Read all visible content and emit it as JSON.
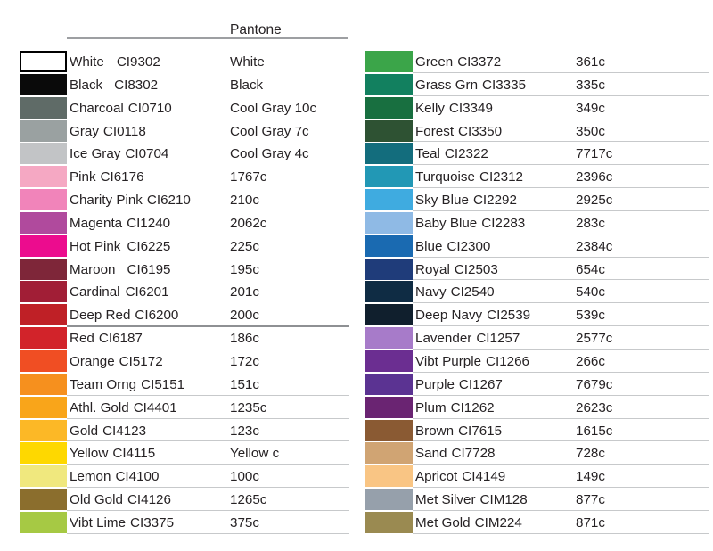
{
  "header": {
    "pantone_label": "Pantone"
  },
  "styles": {
    "background": "#ffffff",
    "text_color": "#262224",
    "header_line_color": "#9d9fa2",
    "row_underline_color": "#c7c9cb",
    "section_divider_color": "#8e9093"
  },
  "columns": {
    "left": {
      "rows": [
        {
          "name": "White",
          "code": "CI9302",
          "pantone": "White",
          "color": "#ffffff",
          "border": true,
          "gap": 14
        },
        {
          "name": "Black",
          "code": "CI8302",
          "pantone": "Black",
          "color": "#0a0a0a",
          "gap": 13
        },
        {
          "name": "Charcoal",
          "code": "CI0710",
          "pantone": "Cool Gray 10c",
          "color": "#5f6b67"
        },
        {
          "name": "Gray",
          "code": "CI0118",
          "pantone": "Cool Gray 7c",
          "color": "#9aa1a1"
        },
        {
          "name": "Ice Gray",
          "code": "CI0704",
          "pantone": "Cool Gray 4c",
          "color": "#c2c4c6"
        },
        {
          "name": "Pink",
          "code": "CI6176",
          "pantone": "1767c",
          "color": "#f5a8c3"
        },
        {
          "name": "Charity Pink",
          "code": "CI6210",
          "pantone": "210c",
          "color": "#f184ba"
        },
        {
          "name": "Magenta",
          "code": "CI1240",
          "pantone": "2062c",
          "color": "#b04a9d"
        },
        {
          "name": "Hot Pink",
          "code": "CI6225",
          "pantone": "225c",
          "color": "#ec0c8e",
          "gap": 7
        },
        {
          "name": "Maroon",
          "code": "CI6195",
          "pantone": "195c",
          "color": "#7e2639",
          "gap": 13
        },
        {
          "name": "Cardinal",
          "code": "CI6201",
          "pantone": "201c",
          "color": "#a11e36",
          "gap": 6
        },
        {
          "name": "Deep Red",
          "code": "CI6200",
          "pantone": "200c",
          "color": "#bf2026",
          "underline": "dark"
        },
        {
          "name": "Red",
          "code": "CI6187",
          "pantone": "186c",
          "color": "#d2232a"
        },
        {
          "name": "Orange",
          "code": "CI5172",
          "pantone": "172c",
          "color": "#f04e23"
        },
        {
          "name": "Team Orng",
          "code": "CI5151",
          "pantone": "151c",
          "color": "#f6901e",
          "underline": "light"
        },
        {
          "name": "Athl. Gold",
          "code": "CI4401",
          "pantone": "1235c",
          "color": "#f9a51a",
          "underline": "light"
        },
        {
          "name": "Gold",
          "code": "CI4123",
          "pantone": "123c",
          "color": "#fcb826",
          "underline": "light"
        },
        {
          "name": "Yellow",
          "code": "CI4115",
          "pantone": "Yellow c",
          "color": "#fed800",
          "underline": "light"
        },
        {
          "name": "Lemon",
          "code": "CI4100",
          "pantone": "100c",
          "color": "#f0e87e",
          "underline": "light"
        },
        {
          "name": "Old Gold",
          "code": "CI4126",
          "pantone": "1265c",
          "color": "#8b6e2d",
          "underline": "light"
        },
        {
          "name": "Vibt Lime",
          "code": "CI3375",
          "pantone": "375c",
          "color": "#a6c944",
          "underline": "light"
        }
      ]
    },
    "right": {
      "rows": [
        {
          "name": "Green",
          "code": "CI3372",
          "pantone": "361c",
          "color": "#3ba549",
          "underline": "light"
        },
        {
          "name": "Grass Grn",
          "code": "CI3335",
          "pantone": "335c",
          "color": "#12805f",
          "underline": "light"
        },
        {
          "name": "Kelly",
          "code": "CI3349",
          "pantone": "349c",
          "color": "#186f40",
          "underline": "light"
        },
        {
          "name": "Forest",
          "code": "CI3350",
          "pantone": "350c",
          "color": "#2e5233",
          "underline": "light"
        },
        {
          "name": "Teal",
          "code": "CI2322",
          "pantone": "7717c",
          "color": "#136d7d",
          "underline": "light"
        },
        {
          "name": "Turquoise",
          "code": "CI2312",
          "pantone": "2396c",
          "color": "#2298b5",
          "underline": "light"
        },
        {
          "name": "Sky Blue",
          "code": "CI2292",
          "pantone": "2925c",
          "color": "#3fabe0",
          "underline": "light"
        },
        {
          "name": "Baby Blue",
          "code": "CI2283",
          "pantone": "283c",
          "color": "#8fbae5",
          "underline": "light"
        },
        {
          "name": "Blue",
          "code": "CI2300",
          "pantone": "2384c",
          "color": "#1a6ab1",
          "underline": "light"
        },
        {
          "name": "Royal",
          "code": "CI2503",
          "pantone": "654c",
          "color": "#1f3c7a",
          "underline": "light"
        },
        {
          "name": "Navy",
          "code": "CI2540",
          "pantone": "540c",
          "color": "#0f2c44",
          "underline": "light"
        },
        {
          "name": "Deep Navy",
          "code": "CI2539",
          "pantone": "539c",
          "color": "#101f2d",
          "underline": "light"
        },
        {
          "name": "Lavender",
          "code": "CI1257",
          "pantone": "2577c",
          "color": "#a77bc9",
          "underline": "light"
        },
        {
          "name": "Vibt Purple",
          "code": "CI1266",
          "pantone": "266c",
          "color": "#6b2e91",
          "underline": "light"
        },
        {
          "name": "Purple",
          "code": "CI1267",
          "pantone": "7679c",
          "color": "#5b3392",
          "underline": "light"
        },
        {
          "name": "Plum",
          "code": "CI1262",
          "pantone": "2623c",
          "color": "#6a2472",
          "underline": "light"
        },
        {
          "name": "Brown",
          "code": "CI7615",
          "pantone": "1615c",
          "color": "#8a5a33",
          "underline": "light"
        },
        {
          "name": "Sand",
          "code": "CI7728",
          "pantone": "728c",
          "color": "#d0a473",
          "underline": "light"
        },
        {
          "name": "Apricot",
          "code": "CI4149",
          "pantone": "149c",
          "color": "#f9c584",
          "underline": "light"
        },
        {
          "name": "Met Silver",
          "code": "CIM128",
          "pantone": "877c",
          "color": "#96a0ab",
          "underline": "light"
        },
        {
          "name": "Met Gold",
          "code": "CIM224",
          "pantone": "871c",
          "color": "#9a8a51",
          "underline": "light"
        }
      ]
    }
  }
}
